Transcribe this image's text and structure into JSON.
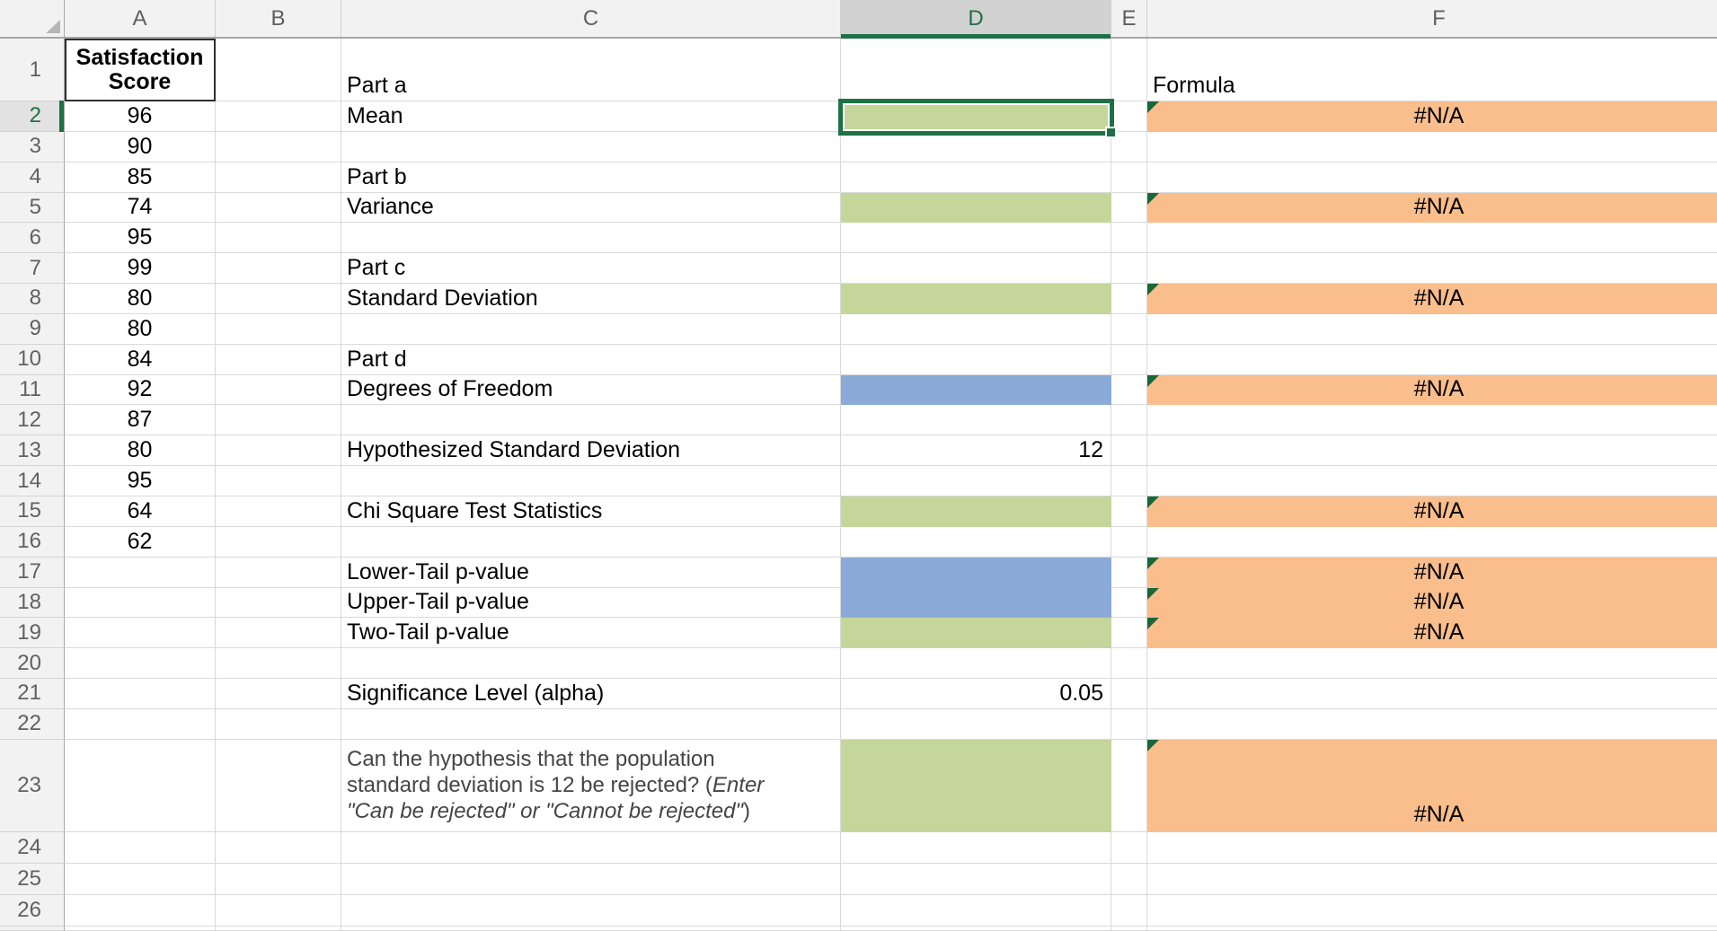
{
  "sheet": {
    "col_headers": [
      "A",
      "B",
      "C",
      "D",
      "E",
      "F"
    ],
    "row_count": 26,
    "selection": {
      "active_cell": "D2",
      "selected_column": "D",
      "selected_row": 2
    },
    "colA": {
      "header": "Satisfaction Score",
      "scores_start_row": 2,
      "scores": [
        96,
        90,
        85,
        74,
        95,
        99,
        80,
        80,
        84,
        92,
        87,
        80,
        95,
        64,
        62
      ]
    },
    "colC": {
      "labels": {
        "1": "Part a",
        "2": "Mean",
        "4": "Part b",
        "5": "Variance",
        "7": "Part c",
        "8": "Standard Deviation",
        "10": "Part d",
        "11": "Degrees of Freedom",
        "13": "Hypothesized Standard Deviation",
        "15": "Chi Square Test Statistics",
        "17": "Lower-Tail p-value",
        "18": "Upper-Tail p-value",
        "19": "Two-Tail p-value",
        "21": "Significance Level (alpha)"
      },
      "question_row": 23,
      "question": {
        "line1": "Can the hypothesis that the population",
        "line2_regular": "standard deviation is 12 be rejected? (",
        "line2_italic": "Enter",
        "line3_italic": "\"Can be rejected\" or \"Cannot be rejected\"",
        "line3_closing": ")"
      }
    },
    "colD": {
      "values": {
        "13": "12",
        "21": "0.05"
      },
      "green_rows": [
        2,
        5,
        8,
        15,
        19,
        23
      ],
      "blue_rows": [
        11,
        17,
        18
      ]
    },
    "colF": {
      "header": "Formula",
      "error_value": "#N/A",
      "error_rows": [
        2,
        5,
        8,
        11,
        15,
        17,
        18,
        19,
        23
      ]
    },
    "colors": {
      "green_fill": "#C5D69B",
      "blue_fill": "#8CAAD7",
      "orange_fill": "#FABE8C",
      "selection_green": "#1E7145",
      "error_triangle": "#17683B"
    }
  }
}
